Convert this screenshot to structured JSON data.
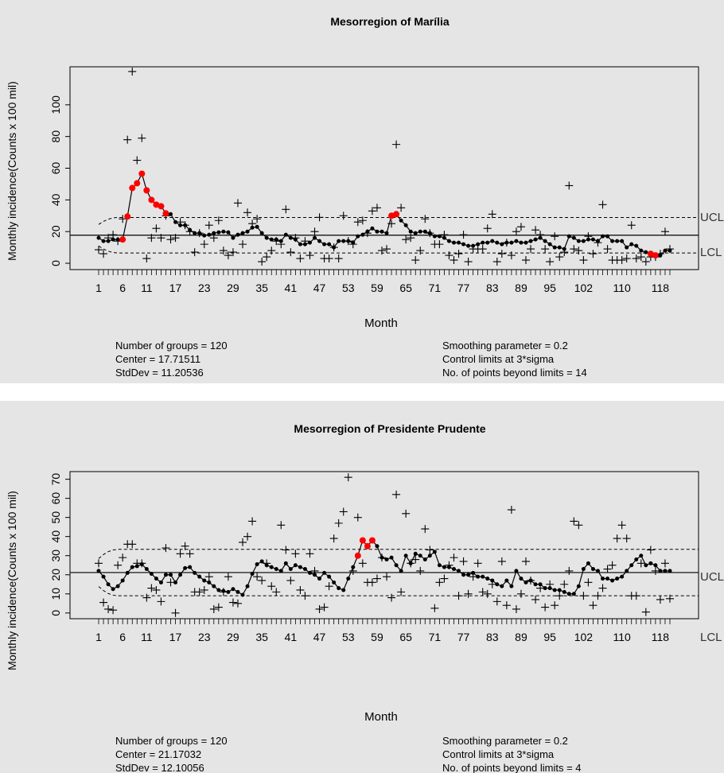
{
  "charts": [
    {
      "title": "Mesorregion of Marília",
      "ylabel": "Monthly incidence(Counts x 100 mil)",
      "xlabel": "Month",
      "ucl_label": "UCL",
      "lcl_label": "LCL",
      "stats_left": [
        "Number of groups = 120",
        "Center = 17.71511",
        "StdDev = 11.20536"
      ],
      "stats_right": [
        "Smoothing parameter =  0.2",
        "Control limits at 3*sigma",
        "No. of points beyond limits = 14"
      ]
    },
    {
      "title": "Mesorregion of Presidente Prudente",
      "ylabel": "Monthly incidence(Counts x 100 mil)",
      "xlabel": "Month",
      "ucl_label": "UCL",
      "lcl_label": "LCL",
      "stats_left": [
        "Number of groups = 120",
        "Center = 21.17032",
        "StdDev = 12.10056"
      ],
      "stats_right": [
        "Smoothing parameter =  0.2",
        "Control limits at 3*sigma",
        "No. of points beyond limits = 4"
      ]
    }
  ],
  "chart_data": [
    {
      "type": "line",
      "title": "Mesorregion of Marília",
      "xlabel": "Month",
      "ylabel": "Monthly incidence(Counts x 100 mil)",
      "xlim": [
        1,
        120
      ],
      "ylim": [
        -4,
        124
      ],
      "yticks": [
        0,
        20,
        40,
        60,
        80,
        100
      ],
      "xticks": [
        1,
        6,
        11,
        17,
        23,
        29,
        35,
        41,
        47,
        53,
        59,
        65,
        71,
        77,
        83,
        89,
        95,
        102,
        110,
        118
      ],
      "center": 17.71511,
      "ucl": 28.9,
      "lcl": 6.5,
      "start_band": 24.5,
      "colors": {
        "point": "#000000",
        "beyond": "#ff0000",
        "panel": "#e5e5e5"
      },
      "raw": [
        8.5,
        6,
        16,
        18,
        14,
        28,
        78,
        121,
        65,
        79,
        3,
        16,
        22,
        16,
        30,
        15,
        16,
        26,
        24,
        20,
        7,
        19,
        12,
        24,
        16,
        27,
        8,
        5,
        7,
        38,
        12,
        32,
        25,
        28,
        1,
        4,
        8,
        14,
        12,
        34,
        7,
        16,
        3,
        14,
        5,
        20,
        29,
        3,
        3,
        10,
        3,
        30,
        14,
        12,
        26,
        27,
        19,
        33,
        35,
        8,
        9,
        25,
        75,
        35,
        15,
        16,
        2,
        8,
        28,
        19,
        12,
        12,
        18,
        5,
        2,
        6,
        18,
        1,
        9,
        9,
        9,
        22,
        31,
        1,
        6,
        13,
        5,
        20,
        23,
        2,
        9,
        21,
        18,
        9,
        1,
        17,
        4,
        7,
        49,
        9,
        8,
        2,
        17,
        6,
        13,
        37,
        9,
        2,
        2,
        2,
        3,
        24,
        3,
        4,
        1,
        4,
        4,
        6,
        20,
        9
      ],
      "ewma": [
        16,
        14,
        14,
        15,
        15,
        15,
        29.5,
        47.5,
        50.5,
        56.5,
        46,
        40,
        37,
        36,
        31.5,
        31,
        26,
        24,
        24,
        21,
        19,
        19,
        17.5,
        18,
        19,
        19.5,
        20,
        19.5,
        16,
        18,
        19,
        20,
        22.5,
        23,
        19,
        16,
        15,
        15,
        14,
        18,
        16,
        15,
        12,
        12,
        13,
        16,
        14,
        12,
        12,
        10,
        14,
        14,
        14,
        13,
        17,
        18,
        20,
        22,
        20,
        20,
        19,
        30,
        31,
        27,
        24,
        20,
        19,
        20,
        20,
        19,
        17,
        17,
        16,
        14,
        13,
        13,
        12,
        11,
        11,
        12,
        13,
        13,
        14,
        13,
        12,
        13,
        13,
        14,
        13,
        13,
        14,
        15,
        16,
        14,
        12,
        10,
        10,
        9,
        17,
        16,
        14,
        14,
        15,
        15,
        14,
        17,
        17,
        14,
        14,
        14,
        10,
        12,
        11,
        8,
        7,
        6,
        5,
        5,
        8,
        8
      ],
      "beyond": [
        6,
        7,
        8,
        9,
        10,
        11,
        12,
        13,
        14,
        15,
        62,
        63,
        116,
        117
      ]
    },
    {
      "type": "line",
      "title": "Mesorregion of Presidente Prudente",
      "xlabel": "Month",
      "ylabel": "Monthly incidence(Counts x 100 mil)",
      "xlim": [
        1,
        120
      ],
      "ylim": [
        -3,
        74
      ],
      "yticks": [
        0,
        10,
        20,
        30,
        40,
        50,
        60,
        70
      ],
      "xticks": [
        1,
        6,
        11,
        17,
        23,
        29,
        35,
        41,
        47,
        53,
        59,
        65,
        71,
        77,
        83,
        89,
        95,
        102,
        110,
        118
      ],
      "center": 21.17032,
      "ucl": 33.3,
      "lcl": 9.0,
      "start_band": 28.5,
      "colors": {
        "point": "#000000",
        "beyond": "#ff0000",
        "panel": "#e5e5e5"
      },
      "raw": [
        26,
        5.5,
        2,
        1.5,
        25,
        29,
        36,
        36,
        26,
        26,
        8,
        13,
        12,
        6,
        34,
        16,
        0,
        31,
        35,
        31,
        11,
        11,
        12,
        19,
        2,
        3,
        11,
        19,
        5.5,
        5,
        37,
        40,
        48,
        19,
        17,
        26,
        14,
        11,
        46,
        33,
        17,
        31,
        12,
        9,
        31,
        22,
        2,
        3,
        14,
        39,
        47,
        53,
        71,
        22,
        50,
        26,
        16,
        16,
        18,
        29,
        19,
        8,
        62,
        11,
        52,
        26,
        28,
        22,
        44,
        33,
        2.5,
        16,
        18,
        25,
        29,
        9,
        27,
        10,
        19,
        26,
        11,
        10,
        15,
        6,
        27,
        4,
        54,
        2,
        10,
        27,
        17,
        7,
        13,
        3,
        15,
        4,
        9,
        15,
        22,
        48,
        46,
        9,
        16,
        4,
        9,
        13,
        23,
        25,
        39,
        46,
        39,
        9,
        9,
        26,
        0.5,
        33,
        22,
        7,
        26,
        7.5
      ],
      "ewma": [
        22,
        19,
        15,
        12.5,
        14,
        17,
        21,
        24,
        24.5,
        25.5,
        23,
        20.5,
        18,
        16,
        20,
        20,
        16,
        20,
        23.5,
        24,
        21,
        19,
        17,
        16,
        14,
        12,
        11.5,
        11,
        12.5,
        11,
        9.5,
        14,
        20.5,
        25.5,
        27,
        25,
        24,
        23,
        22,
        26,
        23,
        25,
        24,
        23,
        21,
        20,
        18,
        21,
        19,
        16,
        13,
        12,
        18,
        24,
        30,
        38,
        35,
        38,
        35,
        29,
        28,
        29,
        25,
        22,
        30,
        26,
        31,
        30,
        28,
        30,
        32,
        25,
        24,
        24,
        23,
        22,
        20,
        20,
        21,
        19,
        19,
        18,
        17,
        15,
        14,
        17,
        14,
        22,
        18,
        16,
        17,
        15,
        15,
        13,
        13,
        12,
        12,
        11,
        10,
        10,
        14,
        23,
        26,
        23,
        22,
        18,
        18,
        17,
        18,
        19,
        22,
        25,
        28,
        30,
        25,
        26,
        25,
        22,
        22,
        22
      ],
      "beyond": [
        55,
        56,
        57,
        58
      ]
    }
  ]
}
